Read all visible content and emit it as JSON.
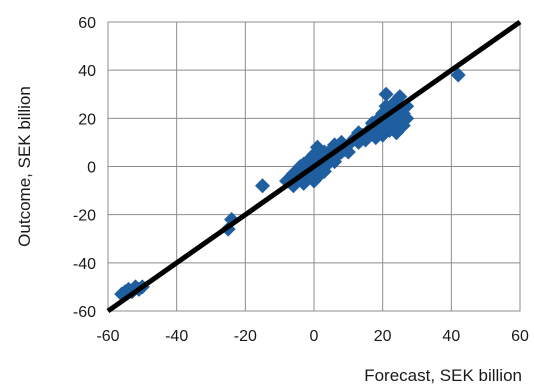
{
  "chart_data": {
    "type": "scatter",
    "title": "",
    "xlabel": "Forecast, SEK billion",
    "ylabel": "Outcome, SEK billion",
    "xlim": [
      -60,
      60
    ],
    "ylim": [
      -60,
      60
    ],
    "x_ticks": [
      -60,
      -40,
      -20,
      0,
      20,
      40,
      60
    ],
    "y_ticks": [
      -60,
      -40,
      -20,
      0,
      20,
      40,
      60
    ],
    "grid": true,
    "legend": "none",
    "reference_line": {
      "from": [
        -60,
        -60
      ],
      "to": [
        60,
        60
      ],
      "color": "#000000"
    },
    "marker_color": "#1f5fa0",
    "marker_shape": "diamond",
    "series": [
      {
        "points": [
          [
            -56,
            -53
          ],
          [
            -55,
            -52
          ],
          [
            -54,
            -51
          ],
          [
            -53,
            -52
          ],
          [
            -52,
            -50
          ],
          [
            -51,
            -51
          ],
          [
            -50,
            -50
          ],
          [
            -25,
            -26
          ],
          [
            -24,
            -22
          ],
          [
            -15,
            -8
          ],
          [
            -8,
            -6
          ],
          [
            -7,
            -5
          ],
          [
            -6,
            -3
          ],
          [
            -6,
            -8
          ],
          [
            -5,
            -2
          ],
          [
            -5,
            -6
          ],
          [
            -4,
            0
          ],
          [
            -4,
            -4
          ],
          [
            -3,
            1
          ],
          [
            -3,
            -2
          ],
          [
            -3,
            -7
          ],
          [
            -2,
            2
          ],
          [
            -2,
            -1
          ],
          [
            -2,
            -5
          ],
          [
            -1,
            3
          ],
          [
            -1,
            0
          ],
          [
            -1,
            -4
          ],
          [
            0,
            5
          ],
          [
            0,
            1
          ],
          [
            0,
            -2
          ],
          [
            0,
            -6
          ],
          [
            1,
            8
          ],
          [
            1,
            3
          ],
          [
            1,
            -1
          ],
          [
            2,
            4
          ],
          [
            2,
            0
          ],
          [
            2,
            -3
          ],
          [
            3,
            6
          ],
          [
            3,
            2
          ],
          [
            3,
            -2
          ],
          [
            4,
            5
          ],
          [
            4,
            1
          ],
          [
            5,
            7
          ],
          [
            5,
            3
          ],
          [
            6,
            9
          ],
          [
            6,
            4
          ],
          [
            6,
            2
          ],
          [
            7,
            8
          ],
          [
            7,
            5
          ],
          [
            8,
            10
          ],
          [
            8,
            6
          ],
          [
            9,
            7
          ],
          [
            10,
            9
          ],
          [
            10,
            6
          ],
          [
            12,
            12
          ],
          [
            13,
            14
          ],
          [
            13,
            10
          ],
          [
            14,
            13
          ],
          [
            15,
            11
          ],
          [
            16,
            15
          ],
          [
            17,
            14
          ],
          [
            17,
            18
          ],
          [
            18,
            12
          ],
          [
            18,
            16
          ],
          [
            19,
            20
          ],
          [
            19,
            15
          ],
          [
            20,
            22
          ],
          [
            20,
            18
          ],
          [
            20,
            13
          ],
          [
            21,
            30
          ],
          [
            21,
            25
          ],
          [
            21,
            17
          ],
          [
            22,
            24
          ],
          [
            22,
            20
          ],
          [
            22,
            15
          ],
          [
            23,
            22
          ],
          [
            23,
            19
          ],
          [
            23,
            26
          ],
          [
            24,
            21
          ],
          [
            24,
            17
          ],
          [
            24,
            14
          ],
          [
            25,
            29
          ],
          [
            25,
            23
          ],
          [
            25,
            19
          ],
          [
            26,
            22
          ],
          [
            26,
            17
          ],
          [
            27,
            25
          ],
          [
            27,
            20
          ],
          [
            42,
            38
          ]
        ]
      }
    ]
  }
}
